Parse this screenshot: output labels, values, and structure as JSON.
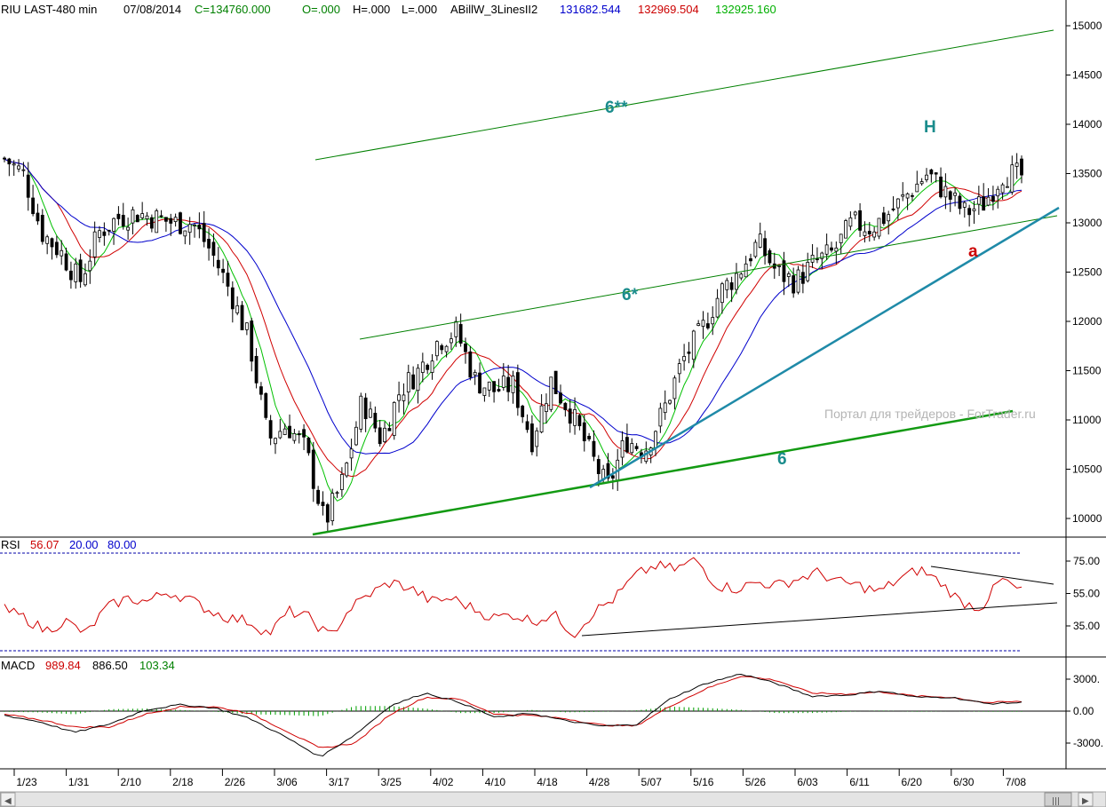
{
  "header": {
    "symbol": "RIU LAST-480 min",
    "date": "07/08/2014",
    "close": "C=134760.000",
    "open": "O=.000",
    "high": "H=.000",
    "low": "L=.000",
    "indicator_name": "ABillW_3LinesII2",
    "ind_blue": "131682.544",
    "ind_red": "132969.504",
    "ind_green": "132925.160"
  },
  "rsi_header": {
    "label": "RSI",
    "value": "56.07",
    "low": "20.00",
    "high": "80.00"
  },
  "macd_header": {
    "label": "MACD",
    "macd": "989.84",
    "signal": "886.50",
    "hist": "103.34"
  },
  "annotations": {
    "wave_6_double_star": "6**",
    "wave_6_star": "6*",
    "wave_6": "6",
    "wave_H": "H",
    "wave_a": "a"
  },
  "watermark": "Портал для трейдеров - ForTrader.ru",
  "colors": {
    "up_line_green": "#008000",
    "teal_trend": "#1f8aa8",
    "ma_green": "#00c000",
    "ma_red": "#d00000",
    "ma_blue": "#0000cc",
    "rsi_line": "#d00000",
    "macd_line": "#000000",
    "signal_line": "#d00000",
    "hist": "#00a000",
    "annotation_teal": "#1a8c8c",
    "annotation_red": "#cc0000"
  },
  "chart_data": [
    {
      "type": "candlestick",
      "panel": "price",
      "x_tick_labels": [
        "1/23",
        "1/31",
        "2/10",
        "2/18",
        "2/26",
        "3/06",
        "3/17",
        "3/25",
        "4/02",
        "4/10",
        "4/18",
        "4/28",
        "5/07",
        "5/16",
        "5/26",
        "6/03",
        "6/11",
        "6/20",
        "6/30",
        "7/08"
      ],
      "y_tick_labels": [
        "15000",
        "14500",
        "14000",
        "13500",
        "13000",
        "12500",
        "12000",
        "11500",
        "11000",
        "10500",
        "10000"
      ],
      "ylim": [
        9800,
        15200
      ],
      "close_anchors": [
        [
          0,
          13650
        ],
        [
          1,
          13500
        ],
        [
          2,
          12900
        ],
        [
          3,
          12700
        ],
        [
          4,
          12400
        ],
        [
          5,
          12900
        ],
        [
          6,
          13050
        ],
        [
          7,
          13100
        ],
        [
          8,
          13050
        ],
        [
          9,
          13000
        ],
        [
          10,
          13000
        ],
        [
          11,
          12700
        ],
        [
          12,
          12300
        ],
        [
          13,
          11800
        ],
        [
          14,
          10800
        ],
        [
          15,
          10950
        ],
        [
          16,
          10700
        ],
        [
          17,
          9950
        ],
        [
          18,
          10400
        ],
        [
          19,
          11200
        ],
        [
          20,
          10800
        ],
        [
          21,
          11300
        ],
        [
          22,
          11500
        ],
        [
          23,
          11800
        ],
        [
          24,
          11900
        ],
        [
          25,
          11400
        ],
        [
          26,
          11300
        ],
        [
          27,
          11350
        ],
        [
          28,
          10800
        ],
        [
          29,
          11400
        ],
        [
          30,
          11100
        ],
        [
          31,
          10700
        ],
        [
          32,
          10300
        ],
        [
          33,
          10800
        ],
        [
          34,
          10700
        ],
        [
          35,
          11100
        ],
        [
          36,
          11600
        ],
        [
          37,
          11900
        ],
        [
          38,
          12300
        ],
        [
          39,
          12500
        ],
        [
          40,
          12800
        ],
        [
          41,
          12500
        ],
        [
          42,
          12400
        ],
        [
          43,
          12600
        ],
        [
          44,
          12700
        ],
        [
          45,
          13000
        ],
        [
          46,
          12950
        ],
        [
          47,
          13100
        ],
        [
          48,
          13300
        ],
        [
          49,
          13500
        ],
        [
          50,
          13300
        ],
        [
          51,
          13100
        ],
        [
          52,
          13200
        ],
        [
          53,
          13500
        ],
        [
          54,
          13476
        ]
      ]
    },
    {
      "type": "line",
      "panel": "rsi",
      "y_tick_labels": [
        "75.00",
        "55.00",
        "35.00"
      ],
      "ylim": [
        15,
        85
      ],
      "levels": [
        20,
        80
      ],
      "value_anchors": [
        [
          0,
          45
        ],
        [
          1,
          40
        ],
        [
          2,
          32
        ],
        [
          3,
          38
        ],
        [
          4,
          30
        ],
        [
          5,
          46
        ],
        [
          6,
          52
        ],
        [
          7,
          50
        ],
        [
          8,
          56
        ],
        [
          9,
          52
        ],
        [
          10,
          45
        ],
        [
          11,
          40
        ],
        [
          12,
          38
        ],
        [
          13,
          30
        ],
        [
          14,
          44
        ],
        [
          15,
          40
        ],
        [
          16,
          28
        ],
        [
          17,
          46
        ],
        [
          18,
          55
        ],
        [
          19,
          62
        ],
        [
          20,
          58
        ],
        [
          21,
          50
        ],
        [
          22,
          52
        ],
        [
          23,
          46
        ],
        [
          24,
          40
        ],
        [
          25,
          42
        ],
        [
          26,
          38
        ],
        [
          27,
          42
        ],
        [
          28,
          30
        ],
        [
          29,
          44
        ],
        [
          30,
          52
        ],
        [
          31,
          66
        ],
        [
          32,
          72
        ],
        [
          33,
          70
        ],
        [
          34,
          76
        ],
        [
          35,
          60
        ],
        [
          36,
          58
        ],
        [
          37,
          62
        ],
        [
          38,
          60
        ],
        [
          39,
          64
        ],
        [
          40,
          68
        ],
        [
          41,
          62
        ],
        [
          42,
          60
        ],
        [
          43,
          56
        ],
        [
          44,
          64
        ],
        [
          45,
          70
        ],
        [
          46,
          62
        ],
        [
          47,
          50
        ],
        [
          48,
          46
        ],
        [
          49,
          64
        ],
        [
          50,
          56
        ]
      ]
    },
    {
      "type": "line",
      "panel": "macd",
      "y_tick_labels": [
        "3000.",
        "0.00",
        "-3000."
      ],
      "ylim": [
        -4500,
        4500
      ],
      "series": [
        {
          "name": "MACD",
          "values": [
            -400,
            -1000,
            -2000,
            -1200,
            100,
            600,
            300,
            -700,
            -2400,
            -4300,
            -2200,
            500,
            1700,
            800,
            -600,
            -200,
            -900,
            -1400,
            -1300,
            1200,
            2600,
            3500,
            2600,
            1400,
            1500,
            1900,
            1300,
            1300,
            700,
            800
          ]
        },
        {
          "name": "Signal",
          "values": [
            -300,
            -800,
            -1500,
            -1500,
            -300,
            400,
            400,
            -200,
            -1800,
            -3500,
            -3000,
            -300,
            1300,
            1100,
            -300,
            -400,
            -700,
            -1300,
            -1400,
            500,
            2100,
            3300,
            2900,
            1700,
            1600,
            1800,
            1400,
            1300,
            800,
            900
          ]
        }
      ]
    }
  ]
}
